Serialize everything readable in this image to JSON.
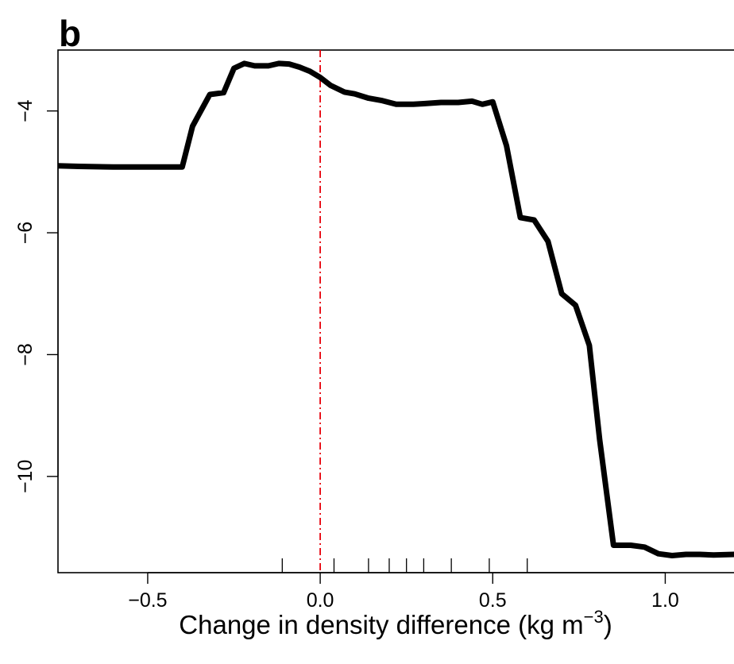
{
  "chart_data": {
    "type": "line",
    "panel_label": "b",
    "xlabel": "Change in density difference (kg m",
    "xlabel_unit_exponent": "−3",
    "xlabel_close": ")",
    "ylabel": "",
    "xlim": [
      -0.76,
      1.22
    ],
    "ylim": [
      -11.58,
      -3.0
    ],
    "x_ticks": [
      {
        "value": -0.5,
        "label": "−0.5"
      },
      {
        "value": 0.0,
        "label": "0.0"
      },
      {
        "value": 0.5,
        "label": "0.5"
      },
      {
        "value": 1.0,
        "label": "1.0"
      }
    ],
    "y_ticks": [
      {
        "value": -4,
        "label": "−4"
      },
      {
        "value": -6,
        "label": "−6"
      },
      {
        "value": -8,
        "label": "−8"
      },
      {
        "value": -10,
        "label": "−10"
      }
    ],
    "reference_line": {
      "x": 0.0,
      "color": "#e8000b",
      "style": "dash-dot"
    },
    "rug": [
      -0.11,
      0.04,
      0.14,
      0.2,
      0.25,
      0.3,
      0.38,
      0.49,
      0.6
    ],
    "grid": false,
    "series": [
      {
        "color": "#000000",
        "x": [
          -0.76,
          -0.7,
          -0.6,
          -0.5,
          -0.45,
          -0.4,
          -0.37,
          -0.32,
          -0.28,
          -0.25,
          -0.22,
          -0.19,
          -0.15,
          -0.12,
          -0.09,
          -0.06,
          -0.03,
          0.0,
          0.03,
          0.07,
          0.1,
          0.14,
          0.18,
          0.22,
          0.27,
          0.3,
          0.35,
          0.4,
          0.44,
          0.47,
          0.5,
          0.54,
          0.58,
          0.62,
          0.66,
          0.7,
          0.74,
          0.78,
          0.81,
          0.85,
          0.9,
          0.94,
          0.98,
          1.02,
          1.06,
          1.1,
          1.14,
          1.2
        ],
        "y": [
          -4.9,
          -4.91,
          -4.92,
          -4.92,
          -4.92,
          -4.92,
          -4.25,
          -3.73,
          -3.7,
          -3.3,
          -3.22,
          -3.26,
          -3.26,
          -3.22,
          -3.23,
          -3.28,
          -3.35,
          -3.45,
          -3.58,
          -3.69,
          -3.72,
          -3.79,
          -3.83,
          -3.89,
          -3.89,
          -3.88,
          -3.86,
          -3.86,
          -3.84,
          -3.89,
          -3.85,
          -4.57,
          -5.75,
          -5.79,
          -6.14,
          -7.0,
          -7.19,
          -7.85,
          -9.4,
          -11.13,
          -11.13,
          -11.16,
          -11.27,
          -11.3,
          -11.28,
          -11.28,
          -11.29,
          -11.28
        ]
      }
    ]
  }
}
